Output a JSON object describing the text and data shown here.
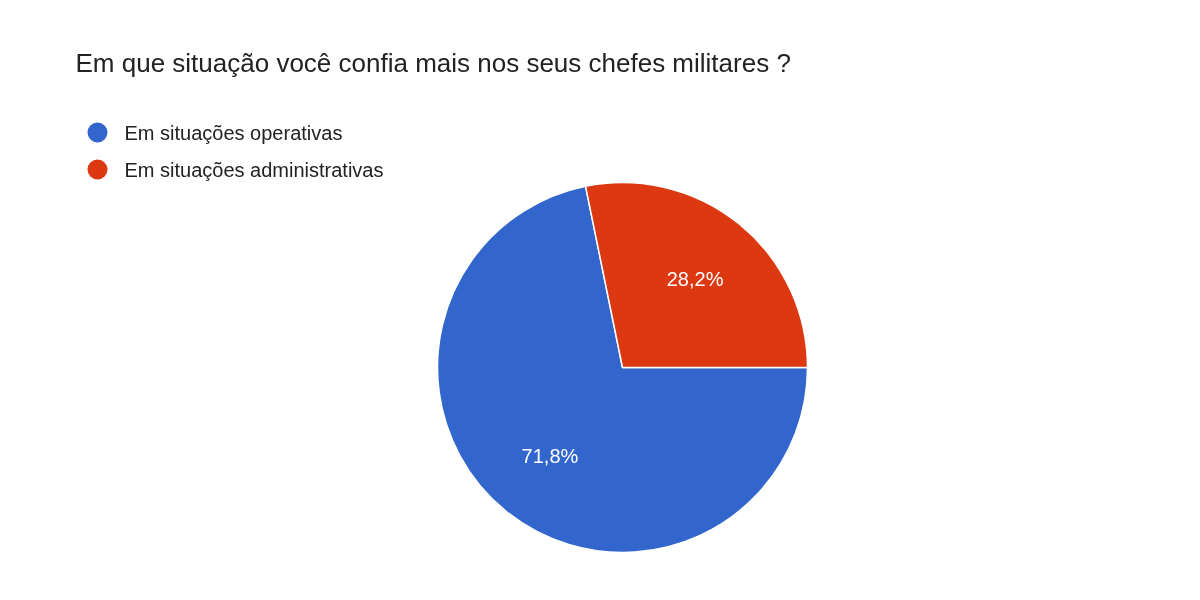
{
  "chart_data": {
    "type": "pie",
    "title": "Em que situação você confia mais nos seus chefes militares ?",
    "categories": [
      "Em situações operativas",
      "Em situações administrativas"
    ],
    "values": [
      71.8,
      28.2
    ],
    "colors": [
      "#3366cc",
      "#dc3912"
    ],
    "value_labels": [
      "71,8%",
      "28,2%"
    ],
    "legend": "top left"
  }
}
